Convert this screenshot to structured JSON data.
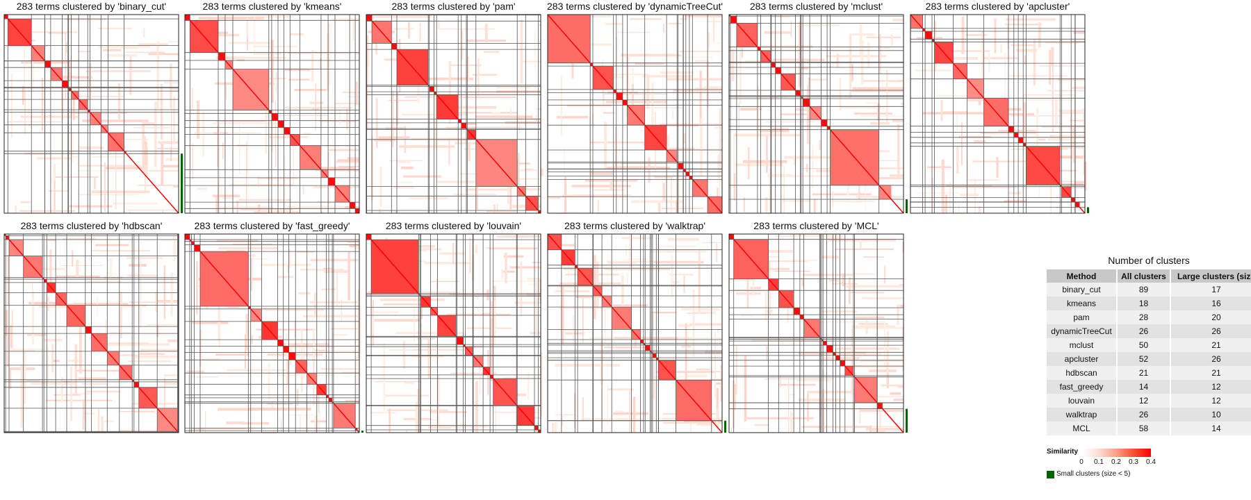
{
  "chart_data": {
    "type": "heatmap",
    "n_terms": 283,
    "panels": [
      {
        "method": "binary_cut",
        "title": "283 terms clustered by 'binary_cut'",
        "small_cluster_fraction": 0.3
      },
      {
        "method": "kmeans",
        "title": "283 terms clustered by 'kmeans'",
        "small_cluster_fraction": 0.0
      },
      {
        "method": "pam",
        "title": "283 terms clustered by 'pam'",
        "small_cluster_fraction": 0.0
      },
      {
        "method": "dynamicTreeCut",
        "title": "283 terms clustered by 'dynamicTreeCut'",
        "small_cluster_fraction": 0.0
      },
      {
        "method": "mclust",
        "title": "283 terms clustered by 'mclust'",
        "small_cluster_fraction": 0.07
      },
      {
        "method": "apcluster",
        "title": "283 terms clustered by 'apcluster'",
        "small_cluster_fraction": 0.03
      },
      {
        "method": "hdbscan",
        "title": "283 terms clustered by 'hdbscan'",
        "small_cluster_fraction": 0.0
      },
      {
        "method": "fast_greedy",
        "title": "283 terms clustered by 'fast_greedy'",
        "small_cluster_fraction": 0.01
      },
      {
        "method": "louvain",
        "title": "283 terms clustered by 'louvain'",
        "small_cluster_fraction": 0.0
      },
      {
        "method": "walktrap",
        "title": "283 terms clustered by 'walktrap'",
        "small_cluster_fraction": 0.06
      },
      {
        "method": "MCL",
        "title": "283 terms clustered by 'MCL'",
        "small_cluster_fraction": 0.12
      }
    ],
    "table": {
      "title": "Number of clusters",
      "headers": [
        "Method",
        "All clusters",
        "Large clusters (size"
      ],
      "rows": [
        [
          "binary_cut",
          "89",
          "17"
        ],
        [
          "kmeans",
          "18",
          "16"
        ],
        [
          "pam",
          "28",
          "20"
        ],
        [
          "dynamicTreeCut",
          "26",
          "26"
        ],
        [
          "mclust",
          "50",
          "21"
        ],
        [
          "apcluster",
          "52",
          "26"
        ],
        [
          "hdbscan",
          "21",
          "21"
        ],
        [
          "fast_greedy",
          "14",
          "12"
        ],
        [
          "louvain",
          "12",
          "12"
        ],
        [
          "walktrap",
          "26",
          "10"
        ],
        [
          "MCL",
          "58",
          "14"
        ]
      ]
    },
    "legend": {
      "title": "Similarity",
      "ticks": [
        "0",
        "0.1",
        "0.2",
        "0.3",
        "0.4"
      ],
      "range": [
        0,
        0.4
      ],
      "colors": [
        "#ffffff",
        "#ff0000"
      ],
      "small_label": "Small clusters (size < 5)",
      "small_color": "#006400"
    }
  }
}
